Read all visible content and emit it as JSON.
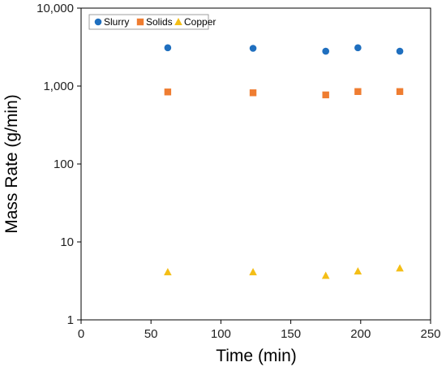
{
  "chart_data": {
    "type": "scatter",
    "title": "",
    "xlabel": "Time (min)",
    "ylabel": "Mass Rate (g/min)",
    "xlim": [
      0,
      250
    ],
    "ylim": [
      1,
      10000
    ],
    "yscale": "log",
    "grid": false,
    "legend_position": "top-left",
    "x_ticks": [
      "0",
      "50",
      "100",
      "150",
      "200",
      "250"
    ],
    "y_ticks": [
      "1",
      "10",
      "100",
      "1,000",
      "10,000"
    ],
    "series": [
      {
        "name": "Slurry",
        "marker": "circle",
        "color": "#1f6fbf",
        "x": [
          62,
          123,
          175,
          198,
          228
        ],
        "y": [
          3100,
          3050,
          2800,
          3100,
          2800
        ]
      },
      {
        "name": "Solids",
        "marker": "square",
        "color": "#ef7d31",
        "x": [
          62,
          123,
          175,
          198,
          228
        ],
        "y": [
          840,
          820,
          770,
          850,
          850
        ]
      },
      {
        "name": "Copper",
        "marker": "triangle",
        "color": "#f4be16",
        "x": [
          62,
          123,
          175,
          198,
          228
        ],
        "y": [
          4.1,
          4.1,
          3.7,
          4.2,
          4.6
        ]
      }
    ]
  }
}
